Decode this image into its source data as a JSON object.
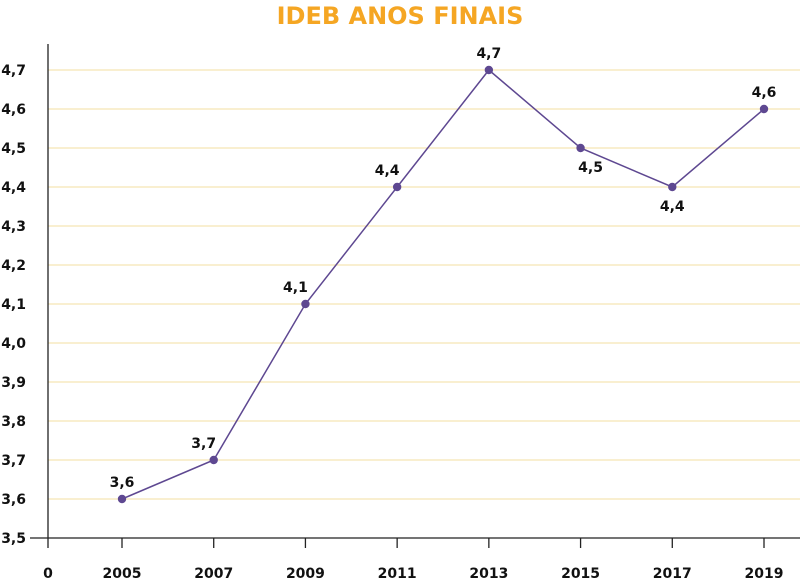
{
  "chart_data": {
    "type": "line",
    "title": "IDEB ANOS FINAIS",
    "xlabel": "",
    "ylabel": "",
    "categories": [
      "2005",
      "2007",
      "2009",
      "2011",
      "2013",
      "2015",
      "2017",
      "2019"
    ],
    "series": [
      {
        "values": [
          3.6,
          3.7,
          4.1,
          4.4,
          4.7,
          4.5,
          4.4,
          4.6
        ]
      }
    ],
    "data_labels": [
      "3,6",
      "3,7",
      "4,1",
      "4,4",
      "4,7",
      "4,5",
      "4,4",
      "4,6"
    ],
    "x_origin_label": "0",
    "ylim": [
      3.5,
      4.7
    ],
    "y_ticks": [
      3.5,
      3.6,
      3.7,
      3.8,
      3.9,
      4.0,
      4.1,
      4.2,
      4.3,
      4.4,
      4.5,
      4.6,
      4.7
    ],
    "y_tick_labels": [
      "3,5",
      "3,6",
      "3,7",
      "3,8",
      "3,9",
      "4,0",
      "4,1",
      "4,2",
      "4,3",
      "4,4",
      "4,5",
      "4,6",
      "4,7"
    ],
    "grid": true,
    "legend": "none",
    "colors": {
      "title": "#F5A623",
      "line": "#5E4891",
      "marker": "#5E4891",
      "grid": "#F3DFA0",
      "axis": "#222222"
    }
  }
}
